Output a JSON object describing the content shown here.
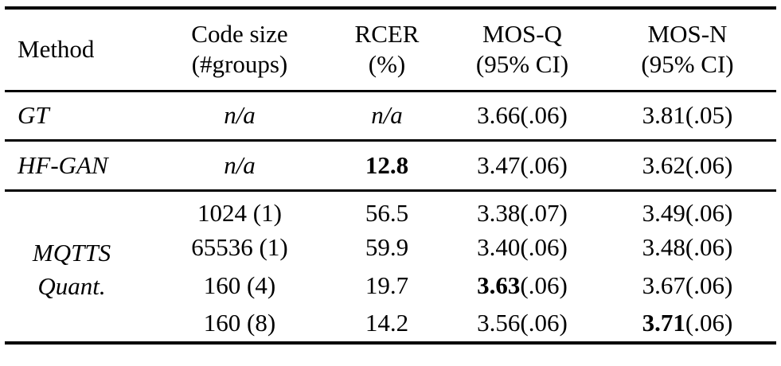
{
  "colors": {
    "text": "#000000",
    "background": "#ffffff",
    "rule": "#000000"
  },
  "table": {
    "header": {
      "method": "Method",
      "code_line1": "Code size",
      "code_line2": "(#groups)",
      "rcer_line1": "RCER",
      "rcer_line2": "(%)",
      "mosq_line1": "MOS-Q",
      "mosq_line2": "(95% CI)",
      "mosn_line1": "MOS-N",
      "mosn_line2": "(95% CI)"
    },
    "rows": {
      "gt": {
        "method": "GT",
        "code": "n/a",
        "rcer": "n/a",
        "mosq_bold": "",
        "mosq": "3.66(.06)",
        "mosn_bold": "",
        "mosn": "3.81(.05)"
      },
      "hfgan": {
        "method": "HF-GAN",
        "code": "n/a",
        "rcer_bold": "12.8",
        "rcer": "",
        "mosq_bold": "",
        "mosq": "3.47(.06)",
        "mosn_bold": "",
        "mosn": "3.62(.06)"
      },
      "mqtts": {
        "method_line1": "MQTTS",
        "method_line2": "Quant.",
        "entries": [
          {
            "code": "1024 (1)",
            "rcer": "56.5",
            "mosq_bold": "",
            "mosq": "3.38(.07)",
            "mosn_bold": "",
            "mosn": "3.49(.06)"
          },
          {
            "code": "65536 (1)",
            "rcer": "59.9",
            "mosq_bold": "",
            "mosq": "3.40(.06)",
            "mosn_bold": "",
            "mosn": "3.48(.06)"
          },
          {
            "code": "160 (4)",
            "rcer": "19.7",
            "mosq_bold": "3.63",
            "mosq": "(.06)",
            "mosn_bold": "",
            "mosn": "3.67(.06)"
          },
          {
            "code": "160 (8)",
            "rcer": "14.2",
            "mosq_bold": "",
            "mosq": "3.56(.06)",
            "mosn_bold": "3.71",
            "mosn": "(.06)"
          }
        ]
      }
    }
  }
}
